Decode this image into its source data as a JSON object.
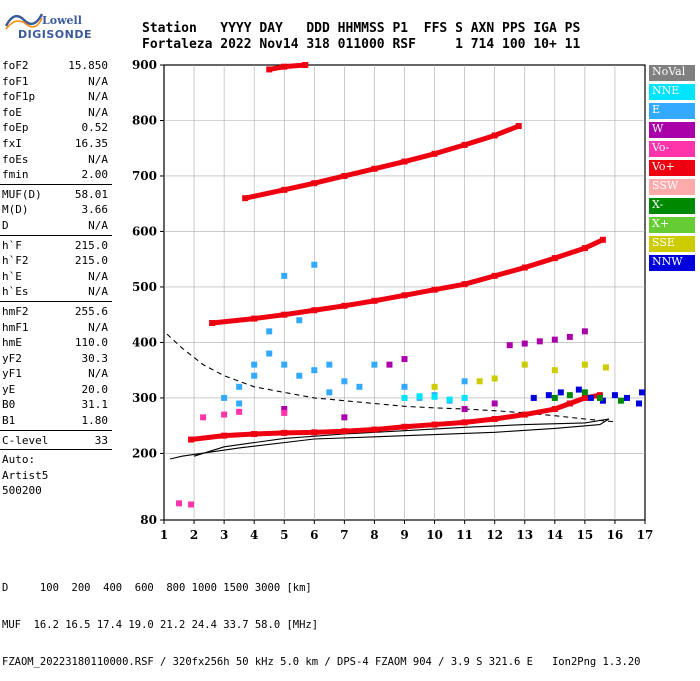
{
  "logo": {
    "line1": "Lowell",
    "line2": "DIGISONDE"
  },
  "header": {
    "line1": "Station   YYYY DAY   DDD HHMMSS P1  FFS S AXN PPS IGA PS",
    "line2": "Fortaleza 2022 Nov14 318 011000 RSF     1 714 100 10+ 11"
  },
  "params": [
    {
      "group": [
        {
          "label": "foF2",
          "value": "15.850"
        },
        {
          "label": "foF1",
          "value": "N/A"
        },
        {
          "label": "foF1p",
          "value": "N/A"
        },
        {
          "label": "foE",
          "value": "N/A"
        },
        {
          "label": "foEp",
          "value": "0.52"
        },
        {
          "label": "fxI",
          "value": "16.35"
        },
        {
          "label": "foEs",
          "value": "N/A"
        },
        {
          "label": "fmin",
          "value": "2.00"
        }
      ]
    },
    {
      "group": [
        {
          "label": "MUF(D)",
          "value": "58.01"
        },
        {
          "label": "M(D)",
          "value": "3.66"
        },
        {
          "label": "D",
          "value": "N/A"
        }
      ]
    },
    {
      "group": [
        {
          "label": "h`F",
          "value": "215.0"
        },
        {
          "label": "h`F2",
          "value": "215.0"
        },
        {
          "label": "h`E",
          "value": "N/A"
        },
        {
          "label": "h`Es",
          "value": "N/A"
        }
      ]
    },
    {
      "group": [
        {
          "label": "hmF2",
          "value": "255.6"
        },
        {
          "label": "hmF1",
          "value": "N/A"
        },
        {
          "label": "hmE",
          "value": "110.0"
        },
        {
          "label": "yF2",
          "value": "30.3"
        },
        {
          "label": "yF1",
          "value": "N/A"
        },
        {
          "label": "yE",
          "value": "20.0"
        },
        {
          "label": "B0",
          "value": "31.1"
        },
        {
          "label": "B1",
          "value": "1.80"
        }
      ]
    },
    {
      "group": [
        {
          "label": "C-level",
          "value": "33"
        }
      ]
    }
  ],
  "notes": [
    "Auto:",
    "Artist5",
    "500200"
  ],
  "legend": [
    {
      "label": "NoVal",
      "color": "#808080"
    },
    {
      "label": "NNE",
      "color": "#00e5ff"
    },
    {
      "label": "E",
      "color": "#33aaff"
    },
    {
      "label": "W",
      "color": "#aa00aa"
    },
    {
      "label": "Vo-",
      "color": "#ff33aa"
    },
    {
      "label": "Vo+",
      "color": "#ee0011"
    },
    {
      "label": "SSW",
      "color": "#ffaaaa"
    },
    {
      "label": "X-",
      "color": "#008800"
    },
    {
      "label": "X+",
      "color": "#66cc33"
    },
    {
      "label": "SSE",
      "color": "#cccc00"
    },
    {
      "label": "NNW",
      "color": "#0000dd"
    }
  ],
  "footer": {
    "d_line": "D     100  200  400  600  800 1000 1500 3000 [km]",
    "muf_line": "MUF  16.2 16.5 17.4 19.0 21.2 24.4 33.7 58.0 [MHz]",
    "file_line": "FZAOM_20223180110000.RSF / 320fx256h 50 kHz 5.0 km / DPS-4 FZAOM 904 / 3.9 S 321.6 E   Ion2Png 1.3.20"
  },
  "chart_data": {
    "type": "scatter",
    "xlim": [
      1,
      17
    ],
    "ylim": [
      80,
      900
    ],
    "x_ticks": [
      "1",
      "2",
      "3",
      "4",
      "5",
      "6",
      "7",
      "8",
      "9",
      "10",
      "11",
      "12",
      "13",
      "14",
      "15",
      "16",
      "17"
    ],
    "y_ticks": [
      "80",
      "200",
      "300",
      "400",
      "500",
      "600",
      "700",
      "800",
      "900"
    ],
    "grid": true,
    "series": [
      {
        "name": "Vo+",
        "color": "#ee0011",
        "points": [
          [
            1.9,
            225
          ],
          [
            3,
            232
          ],
          [
            4,
            235
          ],
          [
            5,
            237
          ],
          [
            6,
            238
          ],
          [
            7,
            240
          ],
          [
            8,
            243
          ],
          [
            9,
            248
          ],
          [
            10,
            252
          ],
          [
            11,
            256
          ],
          [
            12,
            262
          ],
          [
            13,
            270
          ],
          [
            14,
            280
          ],
          [
            14.5,
            290
          ],
          [
            15,
            300
          ],
          [
            15.5,
            305
          ]
        ]
      },
      {
        "name": "Vo+ 2-hop",
        "color": "#ee0011",
        "points": [
          [
            2.6,
            435
          ],
          [
            4,
            443
          ],
          [
            5,
            450
          ],
          [
            6,
            458
          ],
          [
            7,
            466
          ],
          [
            8,
            475
          ],
          [
            9,
            485
          ],
          [
            10,
            495
          ],
          [
            11,
            505
          ],
          [
            12,
            520
          ],
          [
            13,
            535
          ],
          [
            14,
            552
          ],
          [
            15,
            570
          ],
          [
            15.6,
            585
          ]
        ]
      },
      {
        "name": "Vo+ 3-hop",
        "color": "#ee0011",
        "points": [
          [
            3.7,
            660
          ],
          [
            5,
            675
          ],
          [
            6,
            687
          ],
          [
            7,
            700
          ],
          [
            8,
            713
          ],
          [
            9,
            726
          ],
          [
            10,
            740
          ],
          [
            11,
            756
          ],
          [
            12,
            773
          ],
          [
            12.8,
            790
          ]
        ]
      },
      {
        "name": "Vo+ 4-hop",
        "color": "#ee0011",
        "points": [
          [
            4.5,
            892
          ],
          [
            5,
            897
          ],
          [
            5.7,
            900
          ]
        ]
      },
      {
        "name": "E",
        "color": "#33aaff",
        "points": [
          [
            3,
            300
          ],
          [
            3.5,
            320
          ],
          [
            4,
            360
          ],
          [
            4.5,
            380
          ],
          [
            5,
            360
          ],
          [
            5.5,
            340
          ],
          [
            6,
            350
          ],
          [
            6.5,
            360
          ],
          [
            7,
            330
          ],
          [
            7.5,
            320
          ],
          [
            8,
            360
          ],
          [
            9,
            320
          ],
          [
            10,
            305
          ],
          [
            11,
            330
          ],
          [
            4.5,
            420
          ],
          [
            5.5,
            440
          ],
          [
            5,
            520
          ],
          [
            6,
            540
          ],
          [
            4,
            340
          ],
          [
            6.5,
            310
          ],
          [
            3.5,
            290
          ],
          [
            9.5,
            300
          ],
          [
            10.5,
            295
          ]
        ]
      },
      {
        "name": "NNW",
        "color": "#0000dd",
        "points": [
          [
            13.3,
            300
          ],
          [
            13.8,
            305
          ],
          [
            14.2,
            310
          ],
          [
            14.8,
            315
          ],
          [
            15.2,
            300
          ],
          [
            15.6,
            295
          ],
          [
            16,
            305
          ],
          [
            16.4,
            300
          ],
          [
            16.8,
            290
          ],
          [
            16.9,
            310
          ]
        ]
      },
      {
        "name": "W",
        "color": "#aa00aa",
        "points": [
          [
            12.5,
            395
          ],
          [
            13,
            398
          ],
          [
            13.5,
            402
          ],
          [
            14,
            405
          ],
          [
            14.5,
            410
          ],
          [
            15,
            420
          ],
          [
            8.5,
            360
          ],
          [
            9,
            370
          ],
          [
            5,
            280
          ],
          [
            7,
            265
          ],
          [
            11,
            280
          ],
          [
            12,
            290
          ]
        ]
      },
      {
        "name": "X-",
        "color": "#008800",
        "points": [
          [
            14,
            300
          ],
          [
            14.5,
            305
          ],
          [
            15,
            310
          ],
          [
            15.5,
            300
          ],
          [
            16.2,
            295
          ]
        ]
      },
      {
        "name": "SSE",
        "color": "#cccc00",
        "points": [
          [
            10,
            320
          ],
          [
            11.5,
            330
          ],
          [
            12,
            335
          ],
          [
            13,
            360
          ],
          [
            14,
            350
          ],
          [
            15,
            360
          ],
          [
            15.7,
            355
          ]
        ]
      },
      {
        "name": "NNE",
        "color": "#00e5ff",
        "points": [
          [
            9,
            300
          ],
          [
            9.5,
            303
          ],
          [
            10,
            302
          ],
          [
            10.5,
            297
          ],
          [
            11,
            300
          ]
        ]
      },
      {
        "name": "Vo-",
        "color": "#ff33aa",
        "points": [
          [
            1.5,
            110
          ],
          [
            1.9,
            108
          ],
          [
            2.3,
            265
          ],
          [
            3,
            270
          ],
          [
            3.5,
            275
          ],
          [
            5,
            273
          ]
        ]
      }
    ],
    "profile_curves": [
      {
        "style": "solid",
        "points": [
          [
            2,
            195
          ],
          [
            3,
            212
          ],
          [
            5,
            227
          ],
          [
            7,
            235
          ],
          [
            9,
            241
          ],
          [
            11,
            247
          ],
          [
            13,
            252
          ],
          [
            15,
            255
          ],
          [
            15.8,
            262
          ],
          [
            15.5,
            252
          ],
          [
            14,
            245
          ],
          [
            12,
            238
          ],
          [
            9,
            232
          ],
          [
            6,
            226
          ],
          [
            3.5,
            210
          ],
          [
            1.6,
            195
          ],
          [
            1.2,
            190
          ]
        ]
      },
      {
        "style": "dashed",
        "points": [
          [
            1.1,
            415
          ],
          [
            1.6,
            390
          ],
          [
            2.3,
            360
          ],
          [
            3,
            340
          ],
          [
            4,
            320
          ],
          [
            5,
            310
          ],
          [
            6,
            300
          ],
          [
            7,
            295
          ],
          [
            8,
            290
          ],
          [
            9,
            285
          ],
          [
            10,
            282
          ],
          [
            11,
            280
          ],
          [
            12,
            277
          ],
          [
            13,
            273
          ],
          [
            14,
            268
          ],
          [
            15,
            262
          ],
          [
            16,
            257
          ]
        ]
      }
    ]
  }
}
